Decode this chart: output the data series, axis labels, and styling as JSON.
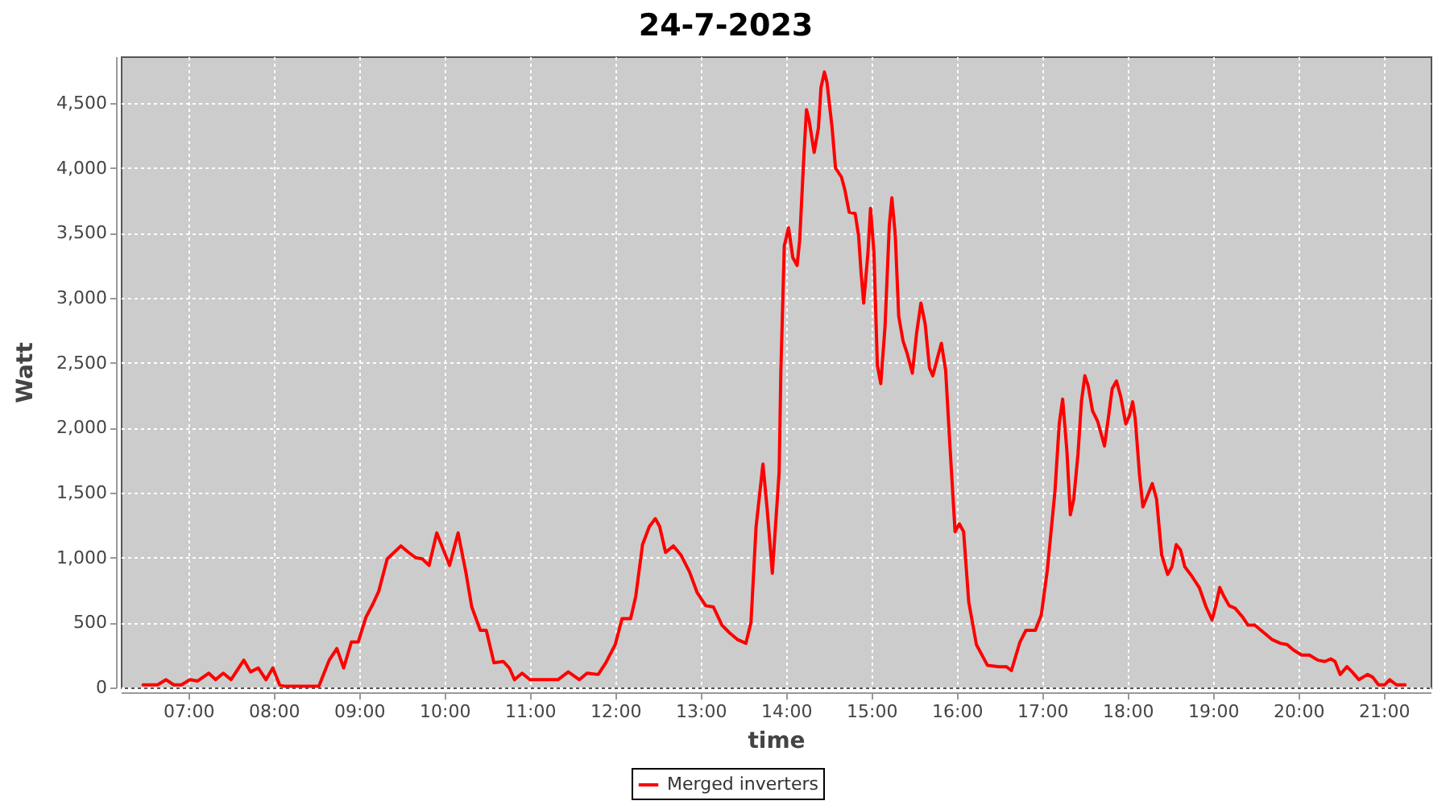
{
  "chart_data": {
    "type": "line",
    "title": "24-7-2023",
    "xlabel": "time",
    "ylabel": "Watt",
    "xlim": [
      6.21,
      21.55
    ],
    "ylim": [
      0,
      4860
    ],
    "xticks": [
      {
        "value": 7,
        "label": "07:00"
      },
      {
        "value": 8,
        "label": "08:00"
      },
      {
        "value": 9,
        "label": "09:00"
      },
      {
        "value": 10,
        "label": "10:00"
      },
      {
        "value": 11,
        "label": "11:00"
      },
      {
        "value": 12,
        "label": "12:00"
      },
      {
        "value": 13,
        "label": "13:00"
      },
      {
        "value": 14,
        "label": "14:00"
      },
      {
        "value": 15,
        "label": "15:00"
      },
      {
        "value": 16,
        "label": "16:00"
      },
      {
        "value": 17,
        "label": "17:00"
      },
      {
        "value": 18,
        "label": "18:00"
      },
      {
        "value": 19,
        "label": "19:00"
      },
      {
        "value": 20,
        "label": "20:00"
      },
      {
        "value": 21,
        "label": "21:00"
      }
    ],
    "yticks": [
      0,
      500,
      {
        "value": 1000,
        "label": "1,000"
      },
      {
        "value": 1500,
        "label": "1,500"
      },
      {
        "value": 2000,
        "label": "2,000"
      },
      {
        "value": 2500,
        "label": "2,500"
      },
      {
        "value": 3000,
        "label": "3,000"
      },
      {
        "value": 3500,
        "label": "3,500"
      },
      {
        "value": 4000,
        "label": "4,000"
      },
      {
        "value": 4500,
        "label": "4,500"
      }
    ],
    "grid": true,
    "legend": "bottom",
    "line_style": "solid",
    "x": [
      6.47,
      6.64,
      6.74,
      6.83,
      6.92,
      7.02,
      7.11,
      7.24,
      7.32,
      7.41,
      7.5,
      7.65,
      7.73,
      7.82,
      7.91,
      7.99,
      8.07,
      8.12,
      8.53,
      8.56,
      8.65,
      8.74,
      8.82,
      8.91,
      8.99,
      9.08,
      9.16,
      9.23,
      9.33,
      9.41,
      9.49,
      9.58,
      9.66,
      9.74,
      9.82,
      9.91,
      10.06,
      10.16,
      10.25,
      10.32,
      10.42,
      10.49,
      10.58,
      10.69,
      10.76,
      10.82,
      10.91,
      11.0,
      11.14,
      11.33,
      11.45,
      11.58,
      11.67,
      11.8,
      11.89,
      12.0,
      12.08,
      12.18,
      12.24,
      12.32,
      12.4,
      12.47,
      12.52,
      12.59,
      12.68,
      12.77,
      12.87,
      12.96,
      13.06,
      13.15,
      13.25,
      13.34,
      13.43,
      13.53,
      13.59,
      13.65,
      13.73,
      13.78,
      13.84,
      13.92,
      13.94,
      13.98,
      14.03,
      14.08,
      14.13,
      14.16,
      14.21,
      14.24,
      14.27,
      14.33,
      14.38,
      14.41,
      14.45,
      14.48,
      14.54,
      14.58,
      14.65,
      14.69,
      14.74,
      14.81,
      14.85,
      14.88,
      14.91,
      14.96,
      14.99,
      15.03,
      15.07,
      15.11,
      15.16,
      15.21,
      15.24,
      15.28,
      15.32,
      15.37,
      15.42,
      15.48,
      15.53,
      15.58,
      15.63,
      15.68,
      15.72,
      15.77,
      15.82,
      15.87,
      15.92,
      15.98,
      16.03,
      16.08,
      16.14,
      16.23,
      16.36,
      16.49,
      16.58,
      16.64,
      16.74,
      16.81,
      16.92,
      16.99,
      17.06,
      17.15,
      17.2,
      17.24,
      17.29,
      17.33,
      17.37,
      17.42,
      17.46,
      17.5,
      17.54,
      17.59,
      17.65,
      17.73,
      17.77,
      17.82,
      17.87,
      17.92,
      17.98,
      18.02,
      18.06,
      18.09,
      18.14,
      18.18,
      18.23,
      18.29,
      18.34,
      18.4,
      18.47,
      18.52,
      18.57,
      18.62,
      18.67,
      18.75,
      18.84,
      18.92,
      18.99,
      19.03,
      19.08,
      19.13,
      19.19,
      19.26,
      19.35,
      19.41,
      19.49,
      19.6,
      19.69,
      19.79,
      19.87,
      19.94,
      20.04,
      20.13,
      20.23,
      20.31,
      20.38,
      20.43,
      20.49,
      20.57,
      20.63,
      20.71,
      20.81,
      20.87,
      20.94,
      21.01,
      21.07,
      21.15,
      21.25
    ],
    "series": [
      {
        "name": "Merged inverters",
        "color": "#ff0000",
        "values": [
          20,
          20,
          60,
          20,
          20,
          60,
          50,
          110,
          60,
          110,
          60,
          210,
          120,
          150,
          60,
          150,
          20,
          10,
          10,
          60,
          210,
          300,
          150,
          350,
          350,
          540,
          640,
          740,
          990,
          1040,
          1090,
          1040,
          1000,
          990,
          940,
          1190,
          940,
          1190,
          890,
          620,
          440,
          440,
          190,
          200,
          150,
          60,
          110,
          60,
          60,
          60,
          120,
          60,
          110,
          100,
          190,
          330,
          530,
          530,
          700,
          1100,
          1240,
          1300,
          1240,
          1040,
          1090,
          1020,
          890,
          730,
          630,
          620,
          480,
          420,
          370,
          340,
          500,
          1240,
          1720,
          1370,
          880,
          1660,
          2440,
          3400,
          3540,
          3310,
          3250,
          3440,
          4100,
          4450,
          4370,
          4120,
          4310,
          4620,
          4740,
          4660,
          4310,
          4000,
          3930,
          3830,
          3660,
          3650,
          3480,
          3190,
          2960,
          3350,
          3690,
          3350,
          2480,
          2340,
          2780,
          3560,
          3770,
          3480,
          2860,
          2670,
          2570,
          2420,
          2730,
          2960,
          2800,
          2460,
          2400,
          2530,
          2650,
          2440,
          1860,
          1200,
          1260,
          1200,
          660,
          330,
          170,
          160,
          160,
          130,
          350,
          440,
          440,
          560,
          900,
          1510,
          2030,
          2220,
          1820,
          1330,
          1450,
          1800,
          2200,
          2400,
          2320,
          2130,
          2050,
          1860,
          2050,
          2300,
          2360,
          2240,
          2030,
          2090,
          2200,
          2070,
          1640,
          1390,
          1470,
          1570,
          1450,
          1020,
          870,
          930,
          1100,
          1060,
          930,
          860,
          770,
          620,
          520,
          620,
          770,
          700,
          630,
          610,
          540,
          480,
          480,
          420,
          370,
          340,
          330,
          290,
          250,
          250,
          210,
          200,
          220,
          200,
          100,
          160,
          120,
          60,
          100,
          80,
          20,
          20,
          60,
          20,
          20
        ]
      }
    ]
  }
}
